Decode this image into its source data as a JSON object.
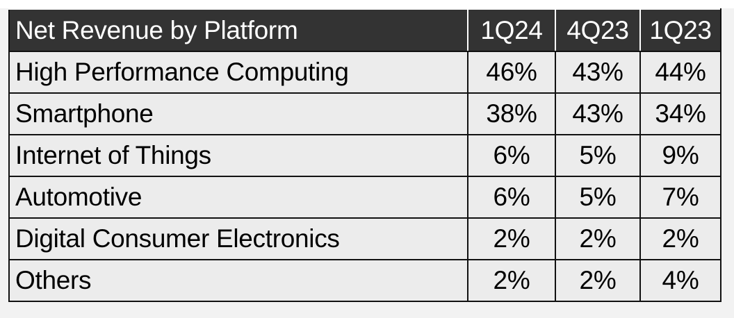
{
  "table": {
    "header": [
      "Net Revenue by Platform",
      "1Q24",
      "4Q23",
      "1Q23"
    ],
    "rows": [
      [
        "High Performance Computing",
        "46%",
        "43%",
        "44%"
      ],
      [
        "Smartphone",
        "38%",
        "43%",
        "34%"
      ],
      [
        "Internet of Things",
        "6%",
        "5%",
        "9%"
      ],
      [
        "Automotive",
        "6%",
        "5%",
        "7%"
      ],
      [
        "Digital Consumer Electronics",
        "2%",
        "2%",
        "2%"
      ],
      [
        "Others",
        "2%",
        "2%",
        "4%"
      ]
    ]
  }
}
